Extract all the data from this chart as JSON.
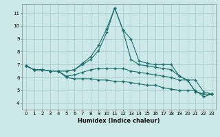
{
  "xlabel": "Humidex (Indice chaleur)",
  "ylabel": "",
  "bg_color": "#cce8e8",
  "grid_color": "#aad0d0",
  "line_color": "#1a6e6a",
  "xlim": [
    -0.5,
    23.5
  ],
  "ylim": [
    3.5,
    11.7
  ],
  "yticks": [
    4,
    5,
    6,
    7,
    8,
    9,
    10,
    11
  ],
  "xtick_labels": [
    "0",
    "1",
    "2",
    "3",
    "4",
    "5",
    "6",
    "7",
    "8",
    "9",
    "10",
    "11",
    "12",
    "13",
    "14",
    "15",
    "16",
    "17",
    "18",
    "19",
    "20",
    "21",
    "22",
    "23"
  ],
  "series": [
    [
      6.9,
      6.6,
      6.6,
      6.5,
      6.5,
      6.5,
      6.6,
      7.1,
      7.6,
      8.5,
      9.8,
      11.4,
      9.7,
      9.0,
      7.3,
      7.1,
      7.0,
      7.0,
      7.0,
      6.1,
      5.8,
      4.9,
      4.7,
      4.7
    ],
    [
      6.9,
      6.6,
      6.6,
      6.5,
      6.5,
      6.5,
      6.6,
      7.0,
      7.4,
      8.1,
      9.5,
      11.4,
      9.7,
      7.4,
      7.0,
      6.9,
      6.8,
      6.7,
      6.6,
      6.1,
      5.8,
      4.9,
      4.7,
      4.7
    ],
    [
      6.9,
      6.6,
      6.6,
      6.5,
      6.5,
      6.1,
      6.2,
      6.4,
      6.6,
      6.7,
      6.7,
      6.7,
      6.7,
      6.5,
      6.4,
      6.3,
      6.2,
      6.1,
      6.0,
      5.8,
      5.8,
      5.8,
      4.9,
      4.7
    ],
    [
      6.9,
      6.6,
      6.6,
      6.5,
      6.5,
      6.0,
      5.9,
      5.9,
      5.9,
      5.8,
      5.8,
      5.7,
      5.7,
      5.6,
      5.5,
      5.4,
      5.4,
      5.2,
      5.1,
      5.0,
      5.0,
      5.0,
      4.5,
      4.7
    ]
  ],
  "marker": "+",
  "marker_size": 3,
  "line_width": 0.8,
  "tick_fontsize": 5.0,
  "xlabel_fontsize": 6.0
}
